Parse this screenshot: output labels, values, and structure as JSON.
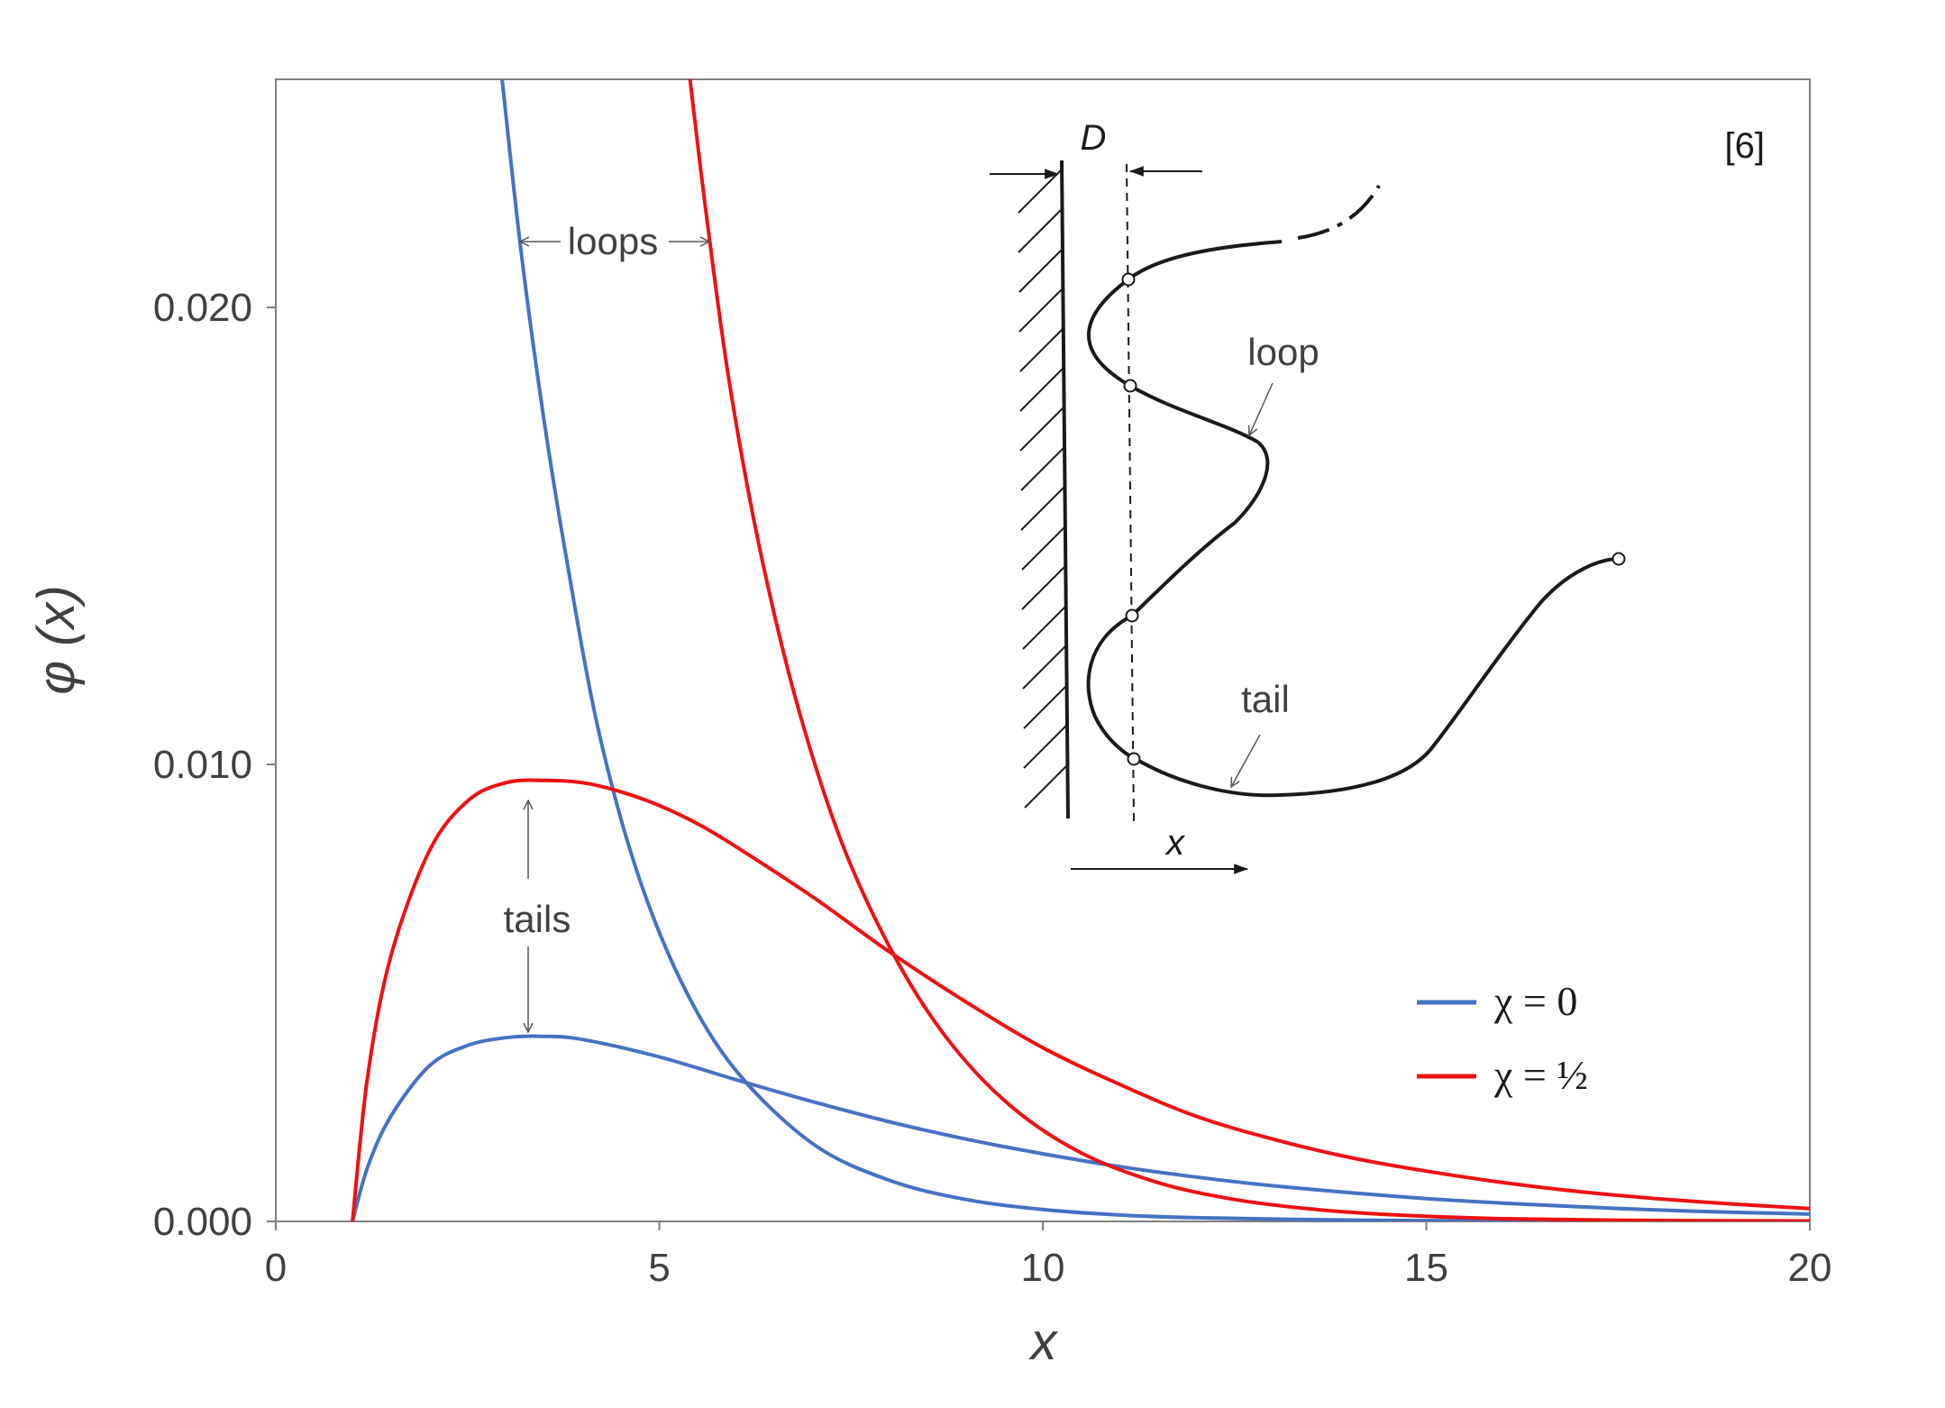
{
  "chart_data": {
    "type": "line",
    "xlabel": "x",
    "ylabel": "φ (x)",
    "xlim": [
      0,
      20
    ],
    "ylim": [
      0,
      0.025
    ],
    "x_ticks": [
      "0",
      "5",
      "10",
      "15",
      "20"
    ],
    "y_ticks": [
      "0.000",
      "0.010",
      "0.020"
    ],
    "reference": "[6]",
    "series": [
      {
        "name": "χ = 0",
        "kind": "loops",
        "color": "#4472C4",
        "x": [
          2.95,
          3.2,
          3.5,
          3.8,
          4.2,
          4.7,
          5.3,
          6.0,
          7.0,
          8.0,
          9.0,
          10.0,
          11.0,
          12.0,
          14.0,
          16.0,
          18.0,
          20.0
        ],
        "y": [
          0.025,
          0.0212,
          0.0175,
          0.0144,
          0.0108,
          0.0077,
          0.0052,
          0.0033,
          0.0017,
          0.0009,
          0.00048,
          0.00026,
          0.00014,
          8e-05,
          3e-05,
          1e-05,
          0.0,
          0.0
        ]
      },
      {
        "name": "χ = 0",
        "kind": "tails",
        "color": "#4472C4",
        "x": [
          1.0,
          1.2,
          1.5,
          2.0,
          2.5,
          3.0,
          3.5,
          4.0,
          5.0,
          6.0,
          7.0,
          8.0,
          9.0,
          10.0,
          11.0,
          12.0,
          13.0,
          14.0,
          15.0,
          16.0,
          17.0,
          18.0,
          19.0,
          20.0
        ],
        "y": [
          0.0,
          0.0012,
          0.0023,
          0.0034,
          0.00385,
          0.00402,
          0.00405,
          0.00398,
          0.0036,
          0.0031,
          0.00262,
          0.00218,
          0.0018,
          0.00148,
          0.0012,
          0.00097,
          0.00078,
          0.00063,
          0.0005,
          0.0004,
          0.00032,
          0.00025,
          0.0002,
          0.00016
        ]
      },
      {
        "name": "χ = ½",
        "kind": "loops",
        "color": "#EE1111",
        "x": [
          5.4,
          5.6,
          5.9,
          6.3,
          6.8,
          7.4,
          8.1,
          8.8,
          9.6,
          10.5,
          11.5,
          12.5,
          13.5,
          14.5,
          16.0,
          18.0,
          20.0
        ],
        "y": [
          0.025,
          0.0222,
          0.0185,
          0.0148,
          0.0113,
          0.0082,
          0.0057,
          0.0039,
          0.0025,
          0.0015,
          0.00085,
          0.00048,
          0.00027,
          0.00015,
          6e-05,
          2e-05,
          1e-05
        ]
      },
      {
        "name": "χ = ½",
        "kind": "tails",
        "color": "#EE1111",
        "x": [
          1.0,
          1.2,
          1.5,
          2.0,
          2.5,
          3.0,
          3.5,
          4.0,
          4.5,
          5.0,
          5.5,
          6.0,
          7.0,
          8.0,
          9.0,
          10.0,
          11.0,
          12.0,
          13.0,
          14.0,
          15.0,
          16.0,
          17.0,
          18.0,
          19.0,
          20.0
        ],
        "y": [
          0.0,
          0.0032,
          0.0058,
          0.0081,
          0.0092,
          0.0096,
          0.00965,
          0.0096,
          0.0094,
          0.0091,
          0.0087,
          0.0082,
          0.0071,
          0.0059,
          0.0048,
          0.0038,
          0.003,
          0.0023,
          0.0018,
          0.0014,
          0.0011,
          0.00085,
          0.00065,
          0.0005,
          0.00038,
          0.00028
        ]
      }
    ],
    "legend": [
      {
        "label": "χ = 0",
        "color": "#4472C4"
      },
      {
        "label": "χ = ½",
        "color": "#EE1111"
      }
    ],
    "annotations": {
      "loops": "loops",
      "tails": "tails"
    },
    "inset": {
      "D": "D",
      "loop": "loop",
      "tail": "tail",
      "x": "x"
    }
  }
}
